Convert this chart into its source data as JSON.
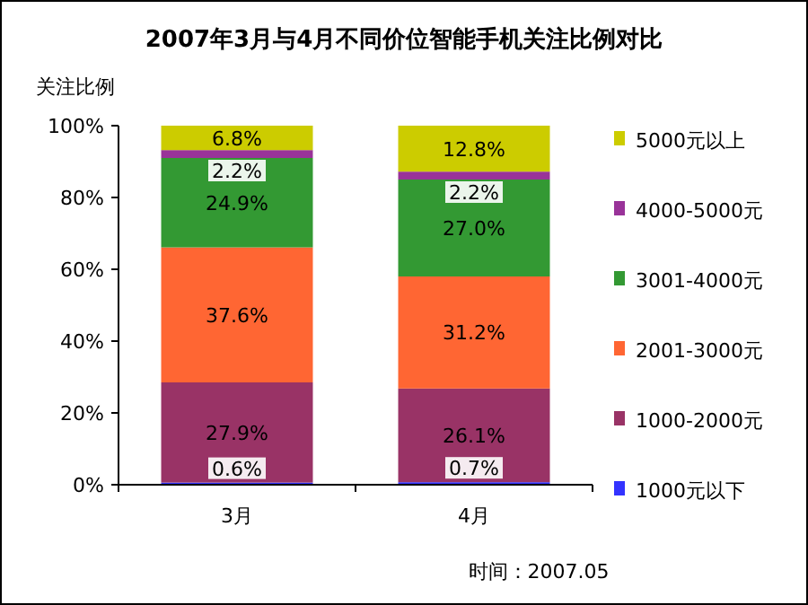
{
  "chart_data": {
    "type": "bar",
    "stacked": true,
    "title": "2007年3月与4月不同价位智能手机关注比例对比",
    "ylabel": "关注比例",
    "categories": [
      "3月",
      "4月"
    ],
    "series": [
      {
        "name": "1000元以下",
        "color": "#3333ff",
        "values": [
          0.6,
          0.7
        ],
        "value_labels": [
          "0.6%",
          "0.7%"
        ]
      },
      {
        "name": "1000-2000元",
        "color": "#993366",
        "values": [
          27.9,
          26.1
        ],
        "value_labels": [
          "27.9%",
          "26.1%"
        ]
      },
      {
        "name": "2001-3000元",
        "color": "#ff6633",
        "values": [
          37.6,
          31.2
        ],
        "value_labels": [
          "37.6%",
          "31.2%"
        ]
      },
      {
        "name": "3001-4000元",
        "color": "#339933",
        "values": [
          24.9,
          27.0
        ],
        "value_labels": [
          "24.9%",
          "27.0%"
        ]
      },
      {
        "name": "4000-5000元",
        "color": "#993399",
        "values": [
          2.2,
          2.2
        ],
        "value_labels": [
          "2.2%",
          "2.2%"
        ]
      },
      {
        "name": "5000元以上",
        "color": "#cccc00",
        "values": [
          6.8,
          12.8
        ],
        "value_labels": [
          "6.8%",
          "12.8%"
        ]
      }
    ],
    "ylim": [
      0,
      100
    ],
    "yticks": [
      {
        "value": 0,
        "label": "0%"
      },
      {
        "value": 20,
        "label": "20%"
      },
      {
        "value": 40,
        "label": "40%"
      },
      {
        "value": 60,
        "label": "60%"
      },
      {
        "value": 80,
        "label": "80%"
      },
      {
        "value": 100,
        "label": "100%"
      }
    ],
    "legend": "right",
    "annotations": [
      "时间：2007.05"
    ]
  }
}
